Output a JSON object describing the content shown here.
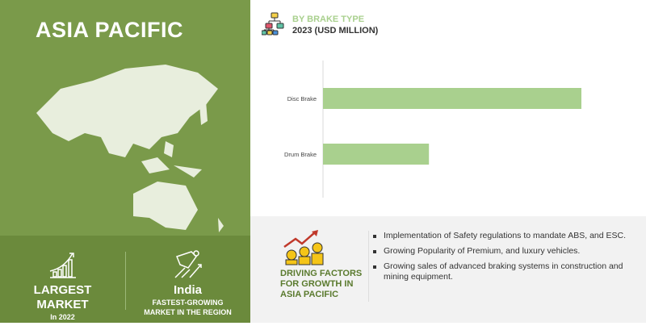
{
  "region": {
    "title": "ASIA PACIFIC"
  },
  "stats": {
    "largest": {
      "line1": "LARGEST",
      "line2": "MARKET",
      "line3": "In 2022",
      "icon": "growth-chart-icon"
    },
    "fastest": {
      "country": "India",
      "line1": "FASTEST-GROWING",
      "line2": "MARKET IN THE REGION",
      "icon": "superhero-rocket-icon"
    }
  },
  "chart_header": {
    "title": "BY BRAKE TYPE",
    "subtitle": "2023 (USD MILLION)",
    "icon": "hierarchy-icon"
  },
  "chart_data": {
    "type": "bar",
    "orientation": "horizontal",
    "categories": [
      "Disc Brake",
      "Drum Brake"
    ],
    "values": [
      100,
      41
    ],
    "title": "BY BRAKE TYPE",
    "subtitle": "2023 (USD MILLION)",
    "xlabel": "",
    "ylabel": "",
    "xlim": [
      0,
      100
    ],
    "grid": false,
    "color": "#a9d08e"
  },
  "drivers": {
    "title": "DRIVING FACTORS FOR GROWTH IN ASIA PACIFIC",
    "icon": "money-growth-icon",
    "items": [
      "Implementation of Safety regulations to mandate ABS, and ESC.",
      "Growing Popularity of Premium, and luxury vehicles.",
      "Growing sales of advanced braking systems in construction and mining equipment."
    ]
  },
  "colors": {
    "panel_green": "#7a9a4a",
    "bar_green": "#a9d08e",
    "drivers_title": "#5a7a2e"
  }
}
